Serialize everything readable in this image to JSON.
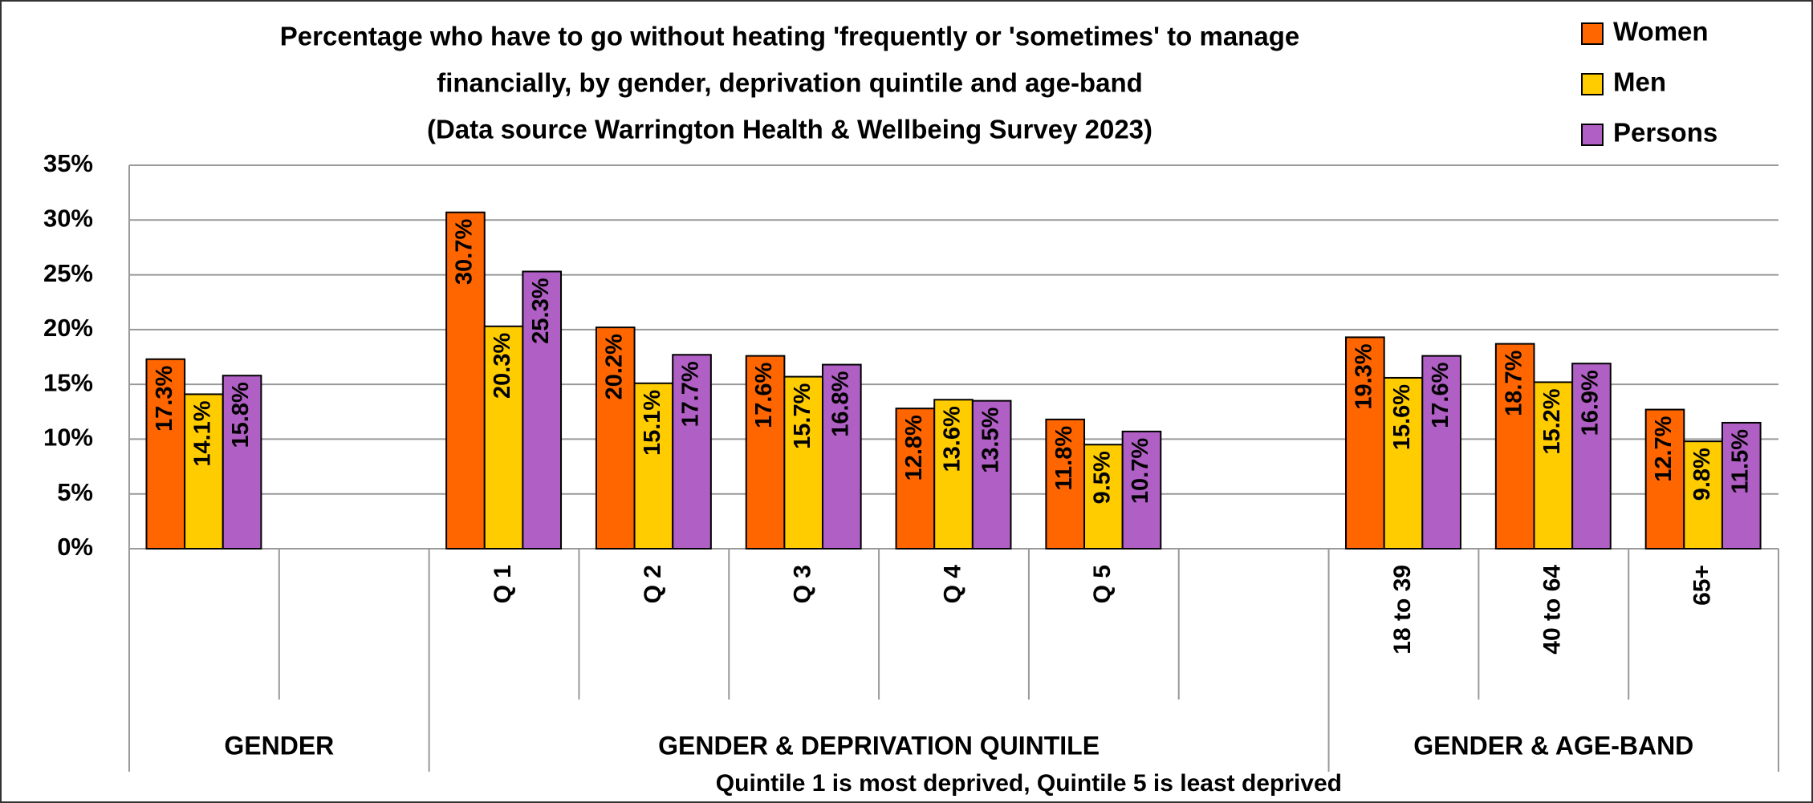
{
  "chart_data": {
    "type": "bar",
    "title": [
      "Percentage who have to go without heating 'frequently or 'sometimes' to manage",
      "financially, by gender, deprivation quintile and age-band",
      "(Data source Warrington Health & Wellbeing Survey 2023)"
    ],
    "categories": [
      null,
      null,
      "Q 1",
      "Q 2",
      "Q 3",
      "Q 4",
      "Q 5",
      null,
      "18 to 39",
      "40 to 64",
      "65+"
    ],
    "groups": [
      "GENDER",
      "GENDER & DEPRIVATION QUINTILE",
      "GENDER & AGE-BAND"
    ],
    "note": "Quintile 1 is most deprived, Quintile 5 is least deprived",
    "series": [
      {
        "name": "Women",
        "color": "#ff6600",
        "values": [
          17.3,
          null,
          30.7,
          20.2,
          17.6,
          12.8,
          11.8,
          null,
          19.3,
          18.7,
          12.7
        ],
        "value_labels": [
          "17.3%",
          null,
          "30.7%",
          "20.2%",
          "17.6%",
          "12.8%",
          "11.8%",
          null,
          "19.3%",
          "18.7%",
          "12.7%"
        ]
      },
      {
        "name": "Men",
        "color": "#ffcc00",
        "values": [
          14.1,
          null,
          20.3,
          15.1,
          15.7,
          13.6,
          9.5,
          null,
          15.6,
          15.2,
          9.8
        ],
        "value_labels": [
          "14.1%",
          null,
          "20.3%",
          "15.1%",
          "15.7%",
          "13.6%",
          "9.5%",
          null,
          "15.6%",
          "15.2%",
          "9.8%"
        ]
      },
      {
        "name": "Persons",
        "color": "#b05fc4",
        "values": [
          15.8,
          null,
          25.3,
          17.7,
          16.8,
          13.5,
          10.7,
          null,
          17.6,
          16.9,
          11.5
        ],
        "value_labels": [
          "15.8%",
          null,
          "25.3%",
          "17.7%",
          "16.8%",
          "13.5%",
          "10.7%",
          null,
          "17.6%",
          "16.9%",
          "11.5%"
        ]
      }
    ],
    "ylim": [
      0,
      35
    ],
    "yticks": [
      {
        "value": 0,
        "label": "0%"
      },
      {
        "value": 5,
        "label": "5%"
      },
      {
        "value": 10,
        "label": "10%"
      },
      {
        "value": 15,
        "label": "15%"
      },
      {
        "value": 20,
        "label": "20%"
      },
      {
        "value": 25,
        "label": "25%"
      },
      {
        "value": 30,
        "label": "30%"
      },
      {
        "value": 35,
        "label": "35%"
      }
    ],
    "grid": true,
    "legend": "top-right"
  }
}
